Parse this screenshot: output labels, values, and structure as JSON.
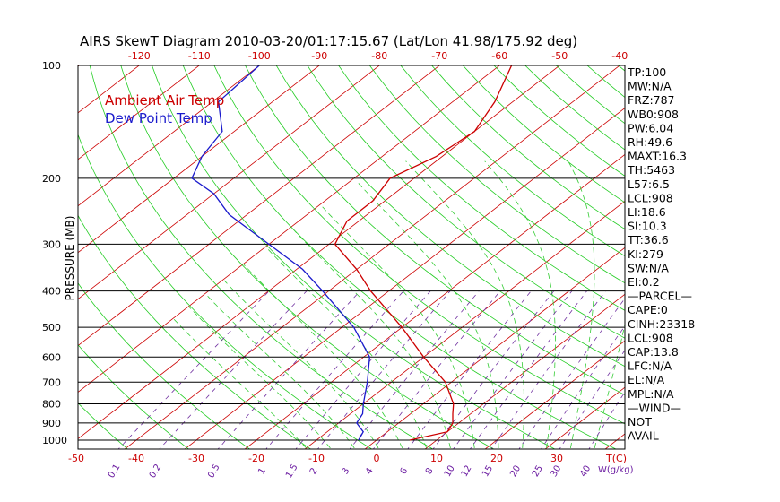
{
  "chart_data": {
    "type": "line",
    "title": "AIRS SkewT Diagram 2010-03-20/01:17:15.67 (Lat/Lon 41.98/175.92 deg)",
    "ylabel": "PRESSURE (MB)",
    "y_scale": "log",
    "ylim": [
      1000,
      100
    ],
    "pressure_ticks": [
      100,
      200,
      300,
      400,
      500,
      600,
      700,
      800,
      900,
      1000
    ],
    "temp_ticks_top": [
      -120,
      -110,
      -100,
      -90,
      -80,
      -70,
      -60,
      -50,
      -40
    ],
    "temp_ticks_bottom": [
      -50,
      -40,
      -30,
      -20,
      -10,
      0,
      10,
      20,
      30
    ],
    "temp_unit_label": "T(C)",
    "mixing_ratio_label": "W(g/kg)",
    "mixing_ratio_ticks": [
      "0.1",
      "0.2",
      "0.5",
      "1",
      "1.5",
      "2",
      "3",
      "4",
      "6",
      "8",
      "10",
      "12",
      "15",
      "20",
      "25",
      "30",
      "40"
    ],
    "legend": [
      {
        "name": "Ambient Air Temp",
        "color": "#cc0000"
      },
      {
        "name": "Dew Point Temp",
        "color": "#1a1acc"
      }
    ],
    "series": [
      {
        "name": "Ambient Air Temp",
        "color": "#cc0000",
        "points": [
          [
            1000,
            5.5
          ],
          [
            950,
            10
          ],
          [
            900,
            9
          ],
          [
            850,
            7
          ],
          [
            800,
            5
          ],
          [
            700,
            -1
          ],
          [
            600,
            -10
          ],
          [
            500,
            -20
          ],
          [
            400,
            -33
          ],
          [
            350,
            -40
          ],
          [
            300,
            -49
          ],
          [
            260,
            -52
          ],
          [
            230,
            -52
          ],
          [
            200,
            -54
          ],
          [
            175,
            -51
          ],
          [
            150,
            -50
          ],
          [
            125,
            -53
          ],
          [
            100,
            -58
          ]
        ]
      },
      {
        "name": "Dew Point Temp",
        "color": "#1a1acc",
        "points": [
          [
            1000,
            -3
          ],
          [
            950,
            -4
          ],
          [
            900,
            -7
          ],
          [
            850,
            -8
          ],
          [
            800,
            -10
          ],
          [
            700,
            -14
          ],
          [
            600,
            -19
          ],
          [
            500,
            -28
          ],
          [
            400,
            -41
          ],
          [
            350,
            -49
          ],
          [
            300,
            -60
          ],
          [
            250,
            -73
          ],
          [
            220,
            -80
          ],
          [
            200,
            -87
          ],
          [
            175,
            -90
          ],
          [
            150,
            -92
          ],
          [
            125,
            -99
          ],
          [
            100,
            -100
          ]
        ]
      }
    ],
    "indices_panel": [
      "TP:100",
      "MW:N/A",
      "FRZ:787",
      "WB0:908",
      "PW:6.04",
      "RH:49.6",
      "MAXT:16.3",
      "TH:5463",
      "L57:6.5",
      "LCL:908",
      "LI:18.6",
      "SI:10.3",
      "TT:36.6",
      "KI:279",
      "SW:N/A",
      "EI:0.2",
      "—PARCEL—",
      "CAPE:0",
      "CINH:23318",
      "LCL:908",
      "CAP:13.8",
      "LFC:N/A",
      "EL:N/A",
      "MPL:N/A",
      "—WIND—",
      "NOT",
      "AVAIL"
    ]
  }
}
